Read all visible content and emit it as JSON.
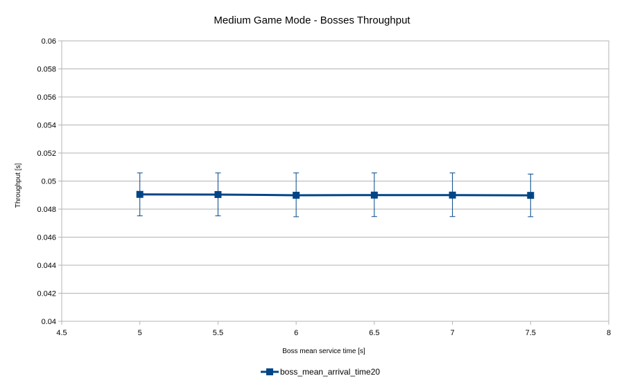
{
  "chart_data": {
    "type": "line",
    "title": "Medium Game Mode - Bosses Throughput",
    "xlabel": "Boss mean service time [s]",
    "ylabel": "Throughput [s]",
    "xlim": [
      4.5,
      8
    ],
    "ylim": [
      0.04,
      0.06
    ],
    "x_ticks": [
      "4.5",
      "5",
      "5.5",
      "6",
      "6.5",
      "7",
      "7.5",
      "8"
    ],
    "y_ticks": [
      "0.04",
      "0.042",
      "0.044",
      "0.046",
      "0.048",
      "0.05",
      "0.052",
      "0.054",
      "0.056",
      "0.058",
      "0.06"
    ],
    "grid": "horizontal",
    "legend_position": "bottom",
    "series": [
      {
        "name": "boss_mean_arrival_time20",
        "color": "#004586",
        "marker": "square",
        "x": [
          5,
          5.5,
          6,
          6.5,
          7,
          7.5
        ],
        "y": [
          0.04905,
          0.04904,
          0.04899,
          0.049,
          0.049,
          0.04898
        ],
        "err_lower": [
          0.04752,
          0.04752,
          0.04746,
          0.04747,
          0.04747,
          0.04746
        ],
        "err_upper": [
          0.05058,
          0.05058,
          0.05058,
          0.05058,
          0.05058,
          0.0505
        ]
      }
    ]
  }
}
